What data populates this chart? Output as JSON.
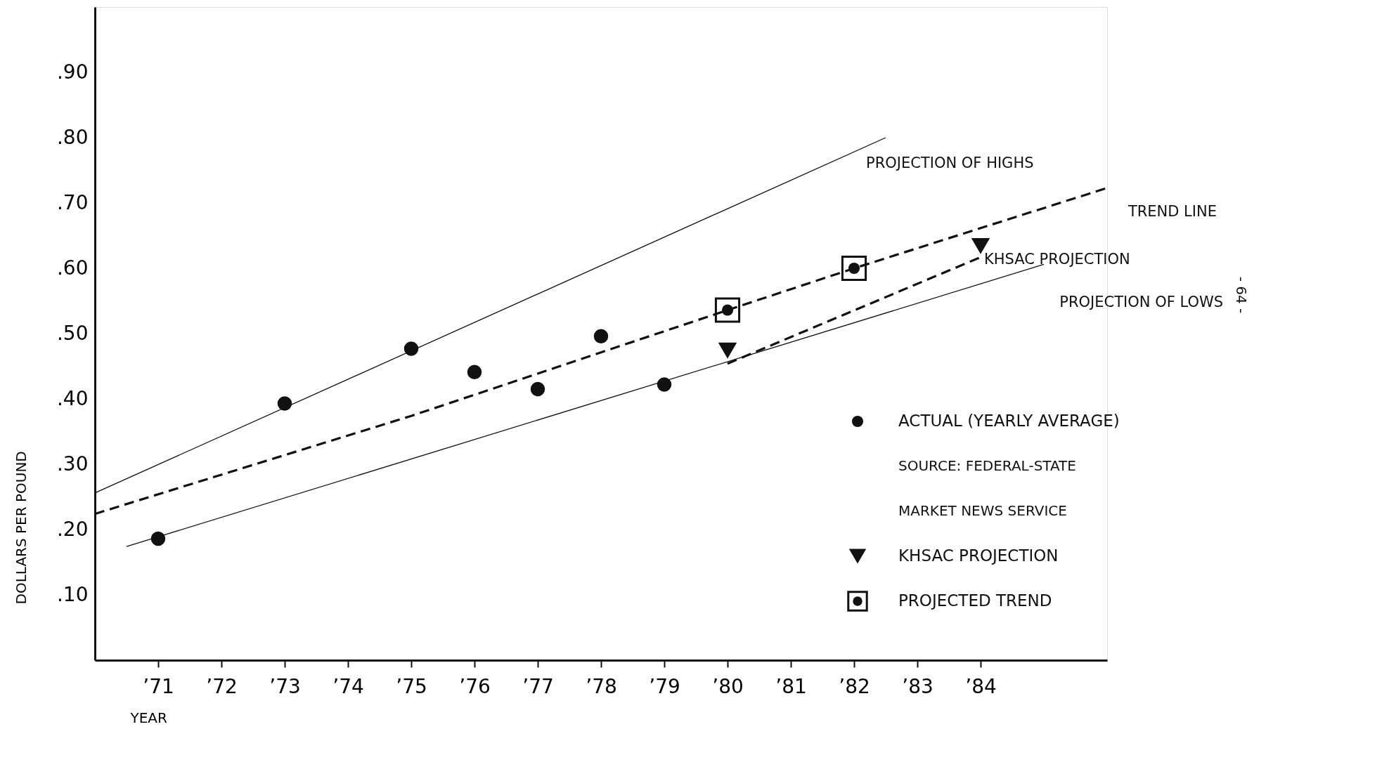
{
  "chart_data": {
    "type": "scatter",
    "xlabel": "YEAR",
    "ylabel": "DOLLARS PER POUND",
    "xlim": [
      70,
      86
    ],
    "ylim": [
      0,
      1.0
    ],
    "xticks": [
      {
        "value": 71,
        "label": "’71"
      },
      {
        "value": 72,
        "label": "’72"
      },
      {
        "value": 73,
        "label": "’73"
      },
      {
        "value": 74,
        "label": "’74"
      },
      {
        "value": 75,
        "label": "’75"
      },
      {
        "value": 76,
        "label": "’76"
      },
      {
        "value": 77,
        "label": "’77"
      },
      {
        "value": 78,
        "label": "’78"
      },
      {
        "value": 79,
        "label": "’79"
      },
      {
        "value": 80,
        "label": "’80"
      },
      {
        "value": 81,
        "label": "’81"
      },
      {
        "value": 82,
        "label": "’82"
      },
      {
        "value": 83,
        "label": "’83"
      },
      {
        "value": 84,
        "label": "’84"
      }
    ],
    "yticks": [
      {
        "value": 0.1,
        "label": ".10"
      },
      {
        "value": 0.2,
        "label": ".20"
      },
      {
        "value": 0.3,
        "label": ".30"
      },
      {
        "value": 0.4,
        "label": ".40"
      },
      {
        "value": 0.5,
        "label": ".50"
      },
      {
        "value": 0.6,
        "label": ".60"
      },
      {
        "value": 0.7,
        "label": ".70"
      },
      {
        "value": 0.8,
        "label": ".80"
      },
      {
        "value": 0.9,
        "label": ".90"
      }
    ],
    "grid": false,
    "legend": "bottom right",
    "series": [
      {
        "name": "ACTUAL (YEARLY AVERAGE)",
        "type": "scatter",
        "marker": "circle",
        "color": "#111111",
        "x": [
          71,
          73,
          75,
          76,
          77,
          78,
          79
        ],
        "values": [
          0.186,
          0.393,
          0.477,
          0.441,
          0.415,
          0.496,
          0.422
        ]
      },
      {
        "name": "KHSAC PROJECTION",
        "type": "scatter",
        "marker": "triangle",
        "color": "#111111",
        "x": [
          80,
          84
        ],
        "values": [
          0.474,
          0.634
        ]
      },
      {
        "name": "PROJECTED TREND",
        "type": "scatter",
        "marker": "square",
        "color": "#111111",
        "x": [
          80,
          82
        ],
        "values": [
          0.536,
          0.6
        ]
      },
      {
        "name": "PROJECTION OF HIGHS",
        "type": "line",
        "line_style": "solid",
        "color": "#111111",
        "x": [
          70,
          82.5
        ],
        "values": [
          0.256,
          0.8
        ]
      },
      {
        "name": "TREND LINE",
        "type": "line",
        "line_style": "dashed",
        "color": "#111111",
        "x": [
          70,
          75,
          80,
          82,
          86
        ],
        "values": [
          0.224,
          0.374,
          0.536,
          0.6,
          0.723
        ]
      },
      {
        "name": "KHSAC PROJECTION",
        "type": "line",
        "line_style": "dashed",
        "color": "#111111",
        "x": [
          80,
          84
        ],
        "values": [
          0.454,
          0.617
        ]
      },
      {
        "name": "PROJECTION OF LOWS",
        "type": "line",
        "line_style": "solid",
        "color": "#111111",
        "x": [
          70.5,
          85
        ],
        "values": [
          0.174,
          0.606
        ]
      }
    ],
    "annotations": [
      "SOURCE:  FEDERAL-STATE\nMARKET NEWS SERVICE",
      "- 64 -"
    ]
  }
}
